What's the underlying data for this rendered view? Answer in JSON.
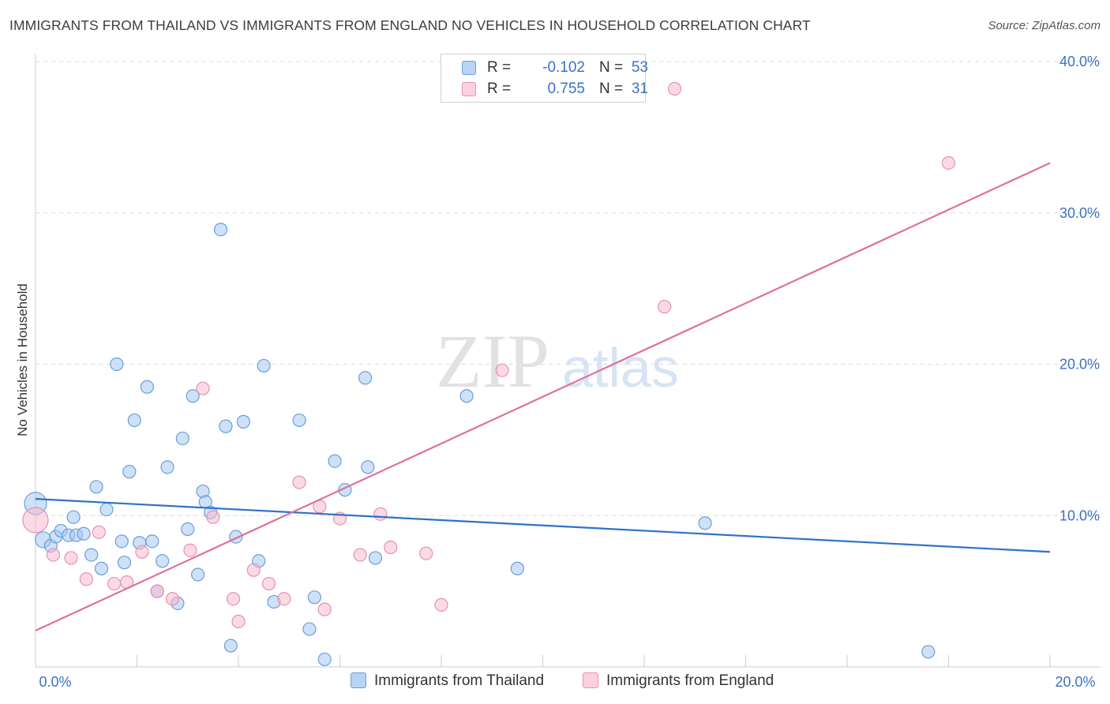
{
  "header": {
    "title": "IMMIGRANTS FROM THAILAND VS IMMIGRANTS FROM ENGLAND NO VEHICLES IN HOUSEHOLD CORRELATION CHART",
    "source": "Source: ZipAtlas.com"
  },
  "legend": {
    "rows": [
      {
        "r_label": "R =",
        "r_value": "-0.102",
        "n_label": "N =",
        "n_value": "53"
      },
      {
        "r_label": "R =",
        "r_value": "0.755",
        "n_label": "N =",
        "n_value": "31"
      }
    ]
  },
  "bottom_legend": {
    "thailand": "Immigrants from Thailand",
    "england": "Immigrants from England"
  },
  "watermark": {
    "zip": "ZIP",
    "atlas": "atlas"
  },
  "colors": {
    "thailand_fill": "#a8c8f0",
    "thailand_stroke": "#6a9edc",
    "thailand_line": "#2f72c8",
    "england_fill": "#f8bcd0",
    "england_stroke": "#e890b0",
    "england_line": "#e0709a",
    "axis_text": "#3a72c4",
    "grid": "#dcdcdc"
  },
  "chart_data": {
    "type": "scatter",
    "title": "IMMIGRANTS FROM THAILAND VS IMMIGRANTS FROM ENGLAND NO VEHICLES IN HOUSEHOLD CORRELATION CHART",
    "xlabel": "",
    "ylabel": "No Vehicles in Household",
    "xlim": [
      0,
      20
    ],
    "ylim": [
      0,
      40
    ],
    "x_tick_labels": [
      "0.0%",
      "20.0%"
    ],
    "y_ticks": [
      10,
      20,
      30,
      40
    ],
    "y_tick_labels": [
      "10.0%",
      "20.0%",
      "30.0%",
      "40.0%"
    ],
    "grid": true,
    "legend_position": "top-center",
    "series": [
      {
        "name": "Immigrants from Thailand",
        "r": -0.102,
        "n": 53,
        "trend": {
          "x0": 0,
          "y0": 11.1,
          "x1": 20,
          "y1": 7.6
        },
        "points": [
          [
            0.0,
            10.8,
            14
          ],
          [
            0.15,
            8.4,
            10
          ],
          [
            0.3,
            8.0,
            8
          ],
          [
            0.4,
            8.6,
            8
          ],
          [
            0.5,
            9.0,
            8
          ],
          [
            0.65,
            8.7,
            8
          ],
          [
            0.75,
            9.9,
            8
          ],
          [
            0.8,
            8.7,
            8
          ],
          [
            0.95,
            8.8,
            8
          ],
          [
            1.1,
            7.4,
            8
          ],
          [
            1.2,
            11.9,
            8
          ],
          [
            1.3,
            6.5,
            8
          ],
          [
            1.4,
            10.4,
            8
          ],
          [
            1.6,
            20.0,
            8
          ],
          [
            1.7,
            8.3,
            8
          ],
          [
            1.75,
            6.9,
            8
          ],
          [
            1.85,
            12.9,
            8
          ],
          [
            1.95,
            16.3,
            8
          ],
          [
            2.05,
            8.2,
            8
          ],
          [
            2.2,
            18.5,
            8
          ],
          [
            2.3,
            8.3,
            8
          ],
          [
            2.4,
            5.0,
            8
          ],
          [
            2.5,
            7.0,
            8
          ],
          [
            2.6,
            13.2,
            8
          ],
          [
            2.8,
            4.2,
            8
          ],
          [
            2.9,
            15.1,
            8
          ],
          [
            3.0,
            9.1,
            8
          ],
          [
            3.1,
            17.9,
            8
          ],
          [
            3.2,
            6.1,
            8
          ],
          [
            3.3,
            11.6,
            8
          ],
          [
            3.35,
            10.9,
            8
          ],
          [
            3.45,
            10.2,
            8
          ],
          [
            3.65,
            28.9,
            8
          ],
          [
            3.75,
            15.9,
            8
          ],
          [
            3.85,
            1.4,
            8
          ],
          [
            3.95,
            8.6,
            8
          ],
          [
            4.1,
            16.2,
            8
          ],
          [
            4.4,
            7.0,
            8
          ],
          [
            4.5,
            19.9,
            8
          ],
          [
            4.7,
            4.3,
            8
          ],
          [
            5.2,
            16.3,
            8
          ],
          [
            5.4,
            2.5,
            8
          ],
          [
            5.5,
            4.6,
            8
          ],
          [
            5.7,
            0.5,
            8
          ],
          [
            5.9,
            13.6,
            8
          ],
          [
            6.1,
            11.7,
            8
          ],
          [
            6.5,
            19.1,
            8
          ],
          [
            6.55,
            13.2,
            8
          ],
          [
            6.7,
            7.2,
            8
          ],
          [
            8.5,
            17.9,
            8
          ],
          [
            9.5,
            6.5,
            8
          ],
          [
            13.2,
            9.5,
            8
          ],
          [
            17.6,
            1.0,
            8
          ]
        ]
      },
      {
        "name": "Immigrants from England",
        "r": 0.755,
        "n": 31,
        "trend": {
          "x0": 0,
          "y0": 2.4,
          "x1": 20,
          "y1": 33.3
        },
        "points": [
          [
            0.0,
            9.7,
            16
          ],
          [
            0.35,
            7.4,
            8
          ],
          [
            0.7,
            7.2,
            8
          ],
          [
            1.0,
            5.8,
            8
          ],
          [
            1.25,
            8.9,
            8
          ],
          [
            1.55,
            5.5,
            8
          ],
          [
            1.8,
            5.6,
            8
          ],
          [
            2.1,
            7.6,
            8
          ],
          [
            2.4,
            5.0,
            8
          ],
          [
            2.7,
            4.5,
            8
          ],
          [
            3.05,
            7.7,
            8
          ],
          [
            3.3,
            18.4,
            8
          ],
          [
            3.5,
            9.9,
            8
          ],
          [
            3.9,
            4.5,
            8
          ],
          [
            4.0,
            3.0,
            8
          ],
          [
            4.3,
            6.4,
            8
          ],
          [
            4.6,
            5.5,
            8
          ],
          [
            4.9,
            4.5,
            8
          ],
          [
            5.2,
            12.2,
            8
          ],
          [
            5.6,
            10.6,
            8
          ],
          [
            5.7,
            3.8,
            8
          ],
          [
            6.0,
            9.8,
            8
          ],
          [
            6.4,
            7.4,
            8
          ],
          [
            6.8,
            10.1,
            8
          ],
          [
            7.0,
            7.9,
            8
          ],
          [
            7.7,
            7.5,
            8
          ],
          [
            8.0,
            4.1,
            8
          ],
          [
            9.2,
            19.6,
            8
          ],
          [
            12.4,
            23.8,
            8
          ],
          [
            12.6,
            38.2,
            8
          ],
          [
            18.0,
            33.3,
            8
          ]
        ]
      }
    ]
  }
}
